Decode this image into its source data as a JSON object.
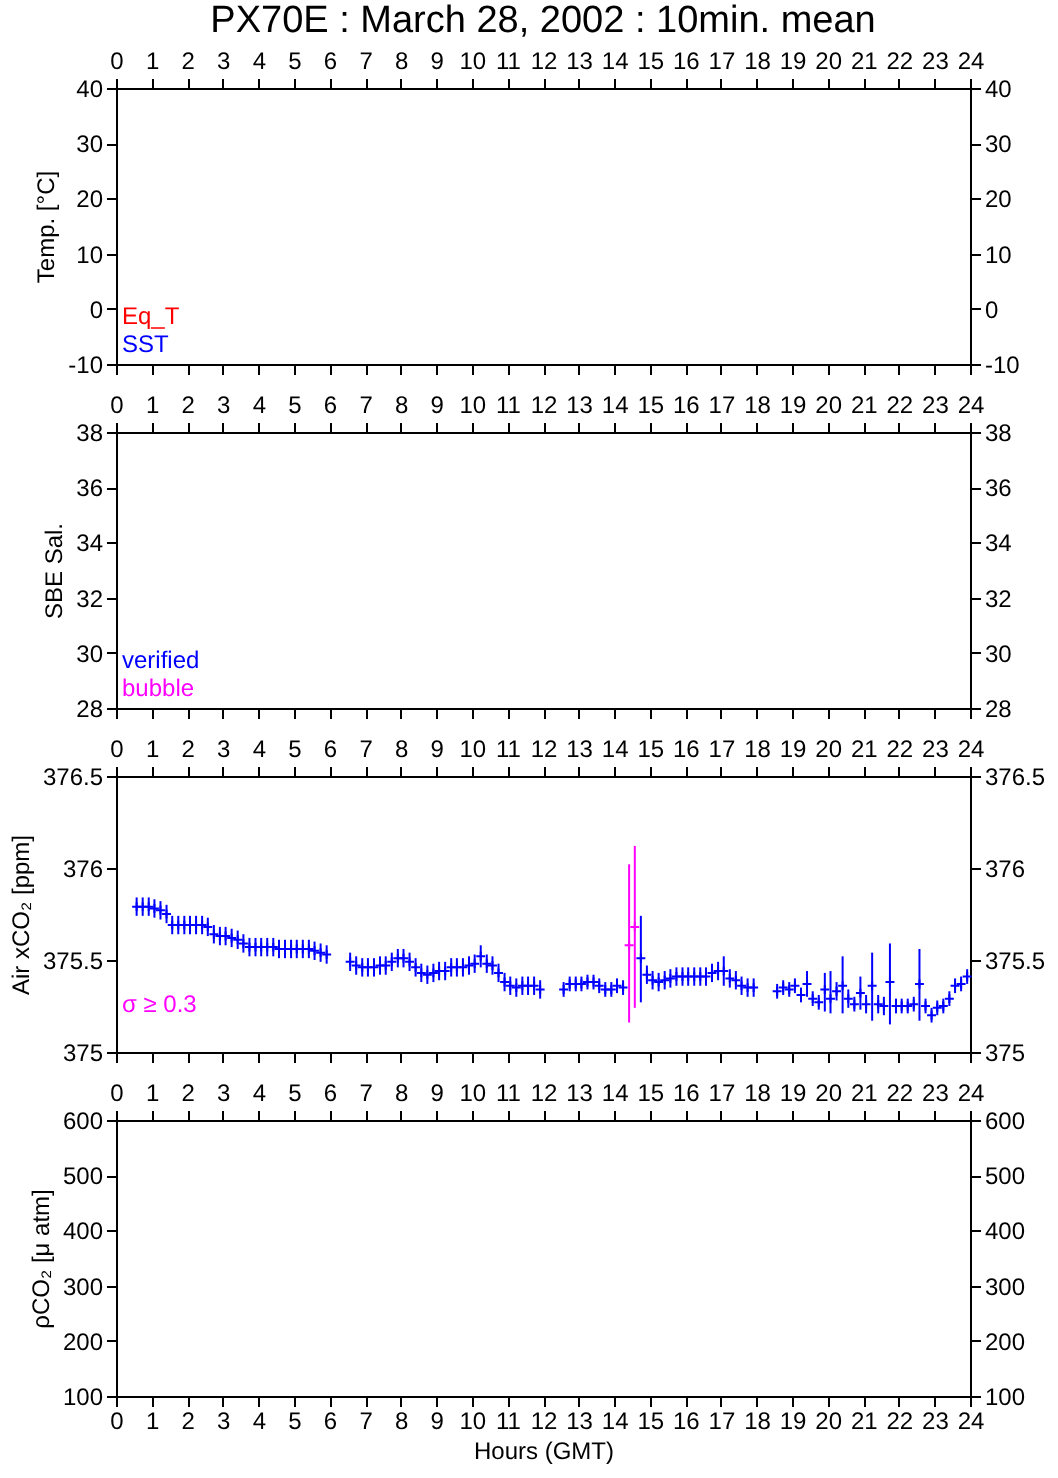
{
  "chart_data": [
    {
      "type": "scatter",
      "title": "PX70E : March 28, 2002 : 10min. mean",
      "ylabel": "Temp. [°C]",
      "x2lim": [
        0,
        24
      ],
      "x2ticks": [
        0,
        1,
        2,
        3,
        4,
        5,
        6,
        7,
        8,
        9,
        10,
        11,
        12,
        13,
        14,
        15,
        16,
        17,
        18,
        19,
        20,
        21,
        22,
        23,
        24
      ],
      "ylim": [
        -10,
        40
      ],
      "yticks": [
        -10,
        0,
        10,
        20,
        30,
        40
      ],
      "y2lim": [
        -10,
        40
      ],
      "y2ticks": [
        -10,
        0,
        10,
        20,
        30,
        40
      ],
      "series": [
        {
          "name": "Eq_T",
          "color": "#ff0000"
        },
        {
          "name": "SST",
          "color": "#0000ff"
        }
      ]
    },
    {
      "type": "scatter",
      "ylabel": "SBE Sal.",
      "x2lim": [
        0,
        24
      ],
      "x2ticks": [
        0,
        1,
        2,
        3,
        4,
        5,
        6,
        7,
        8,
        9,
        10,
        11,
        12,
        13,
        14,
        15,
        16,
        17,
        18,
        19,
        20,
        21,
        22,
        23,
        24
      ],
      "ylim": [
        28,
        38
      ],
      "yticks": [
        28,
        30,
        32,
        34,
        36,
        38
      ],
      "y2lim": [
        28,
        38
      ],
      "y2ticks": [
        28,
        30,
        32,
        34,
        36,
        38
      ],
      "series": [
        {
          "name": "verified",
          "color": "#0000ff"
        },
        {
          "name": "bubble",
          "color": "#ff00ff"
        }
      ]
    },
    {
      "type": "scatter",
      "ylabel": "Air xCO₂ [ppm]",
      "tick_labels": "y",
      "xlim": [
        0,
        24
      ],
      "xticks": [
        0,
        1,
        2,
        3,
        4,
        5,
        6,
        7,
        8,
        9,
        10,
        11,
        12,
        13,
        14,
        15,
        16,
        17,
        18,
        19,
        20,
        21,
        22,
        23,
        24
      ],
      "x2lim": [
        0,
        24
      ],
      "x2ticks": [
        0,
        1,
        2,
        3,
        4,
        5,
        6,
        7,
        8,
        9,
        10,
        11,
        12,
        13,
        14,
        15,
        16,
        17,
        18,
        19,
        20,
        21,
        22,
        23,
        24
      ],
      "ylim": [
        375,
        376.5
      ],
      "yticks": [
        375,
        375.5,
        376,
        376.5
      ],
      "y2lim": [
        375,
        376.5
      ],
      "y2ticks": [
        375,
        375.5,
        376,
        376.5
      ],
      "marker": "cross",
      "series": [
        {
          "color": "#0000ff",
          "x": [
            0.58,
            0.75,
            0.92,
            1.08,
            1.25,
            1.42,
            1.58,
            1.75,
            1.92,
            2.08,
            2.25,
            2.42,
            2.58,
            2.75,
            2.92,
            3.08,
            3.25,
            3.42,
            3.58,
            3.75,
            3.92,
            4.08,
            4.25,
            4.42,
            4.58,
            4.75,
            4.92,
            5.08,
            5.25,
            5.42,
            5.58,
            5.75,
            5.92,
            6.58,
            6.75,
            6.92,
            7.08,
            7.25,
            7.42,
            7.58,
            7.75,
            7.92,
            8.08,
            8.25,
            8.42,
            8.58,
            8.75,
            8.92,
            9.08,
            9.25,
            9.42,
            9.58,
            9.75,
            9.92,
            10.08,
            10.25,
            10.42,
            10.58,
            10.75,
            10.92,
            11.08,
            11.25,
            11.42,
            11.58,
            11.75,
            11.92,
            12.58,
            12.75,
            12.92,
            13.08,
            13.25,
            13.42,
            13.58,
            13.75,
            13.92,
            14.08,
            14.25,
            14.75,
            14.92,
            15.08,
            15.25,
            15.42,
            15.58,
            15.75,
            15.92,
            16.08,
            16.25,
            16.42,
            16.58,
            16.75,
            16.92,
            17.08,
            17.25,
            17.42,
            17.58,
            17.75,
            17.92,
            18.58,
            18.75,
            18.92,
            19.08,
            19.25,
            19.42,
            19.58,
            19.75,
            19.92,
            20.08,
            20.25,
            20.42,
            20.58,
            20.75,
            20.92,
            21.08,
            21.25,
            21.42,
            21.58,
            21.75,
            21.92,
            22.08,
            22.25,
            22.42,
            22.58,
            22.75,
            22.92,
            23.08,
            23.25,
            23.42,
            23.58,
            23.75,
            23.92
          ],
          "values": [
            375.79,
            375.79,
            375.79,
            375.78,
            375.77,
            375.75,
            375.69,
            375.69,
            375.69,
            375.69,
            375.69,
            375.69,
            375.68,
            375.64,
            375.63,
            375.63,
            375.62,
            375.61,
            375.59,
            375.57,
            375.57,
            375.57,
            375.57,
            375.57,
            375.56,
            375.56,
            375.56,
            375.56,
            375.56,
            375.56,
            375.55,
            375.54,
            375.53,
            375.49,
            375.47,
            375.46,
            375.46,
            375.46,
            375.47,
            375.47,
            375.49,
            375.51,
            375.51,
            375.49,
            375.46,
            375.43,
            375.42,
            375.43,
            375.44,
            375.44,
            375.46,
            375.46,
            375.46,
            375.47,
            375.48,
            375.52,
            375.48,
            375.47,
            375.43,
            375.38,
            375.36,
            375.35,
            375.36,
            375.36,
            375.36,
            375.34,
            375.34,
            375.37,
            375.37,
            375.37,
            375.38,
            375.38,
            375.36,
            375.34,
            375.34,
            375.36,
            375.35,
            375.51,
            375.42,
            375.39,
            375.38,
            375.39,
            375.4,
            375.41,
            375.41,
            375.41,
            375.41,
            375.41,
            375.41,
            375.43,
            375.44,
            375.44,
            375.4,
            375.39,
            375.36,
            375.35,
            375.35,
            375.33,
            375.35,
            375.34,
            375.36,
            375.31,
            375.37,
            375.29,
            375.27,
            375.34,
            375.29,
            375.33,
            375.36,
            375.29,
            375.26,
            375.32,
            375.26,
            375.36,
            375.26,
            375.25,
            375.38,
            375.25,
            375.25,
            375.25,
            375.26,
            375.37,
            375.25,
            375.2,
            375.24,
            375.25,
            375.29,
            375.36,
            375.37,
            375.41
          ],
          "errors": [
            0.05,
            0.05,
            0.05,
            0.05,
            0.05,
            0.05,
            0.05,
            0.05,
            0.05,
            0.05,
            0.05,
            0.05,
            0.05,
            0.05,
            0.05,
            0.05,
            0.05,
            0.05,
            0.05,
            0.05,
            0.05,
            0.05,
            0.05,
            0.05,
            0.05,
            0.05,
            0.05,
            0.05,
            0.05,
            0.05,
            0.05,
            0.05,
            0.05,
            0.05,
            0.05,
            0.05,
            0.05,
            0.05,
            0.05,
            0.05,
            0.05,
            0.05,
            0.05,
            0.05,
            0.05,
            0.05,
            0.05,
            0.05,
            0.05,
            0.05,
            0.05,
            0.05,
            0.05,
            0.05,
            0.05,
            0.06,
            0.05,
            0.05,
            0.05,
            0.05,
            0.05,
            0.05,
            0.05,
            0.05,
            0.05,
            0.05,
            0.04,
            0.04,
            0.04,
            0.04,
            0.04,
            0.04,
            0.04,
            0.04,
            0.04,
            0.04,
            0.04,
            [
              375.27,
              375.74
            ],
            0.05,
            0.05,
            0.05,
            0.05,
            0.05,
            0.05,
            0.05,
            0.05,
            0.05,
            0.05,
            0.05,
            0.05,
            0.05,
            0.08,
            0.05,
            0.05,
            0.05,
            0.05,
            0.05,
            0.04,
            0.04,
            0.04,
            0.04,
            0.04,
            0.07,
            0.04,
            0.04,
            [
              375.22,
              375.43
            ],
            [
              375.21,
              375.44
            ],
            0.05,
            [
              375.21,
              375.52
            ],
            0.05,
            0.04,
            [
              375.23,
              375.41
            ],
            0.05,
            [
              375.17,
              375.54
            ],
            0.05,
            0.05,
            [
              375.15,
              375.59
            ],
            0.04,
            0.04,
            0.04,
            0.04,
            [
              375.17,
              375.56
            ],
            0.04,
            0.04,
            0.04,
            0.04,
            0.04,
            0.04,
            0.04,
            0.04
          ]
        },
        {
          "name": "σ ≥ 0.3",
          "color": "#ff00ff",
          "x": [
            14.42,
            14.58
          ],
          "values": [
            375.58,
            375.68
          ],
          "errors": [
            [
              375.16,
              376.02
            ],
            [
              375.24,
              376.12
            ]
          ]
        }
      ]
    },
    {
      "type": "scatter",
      "ylabel": "ρCO₂ [μ atm]",
      "xlabel": "Hours (GMT)",
      "xlim": [
        0,
        24
      ],
      "xticks": [
        0,
        1,
        2,
        3,
        4,
        5,
        6,
        7,
        8,
        9,
        10,
        11,
        12,
        13,
        14,
        15,
        16,
        17,
        18,
        19,
        20,
        21,
        22,
        23,
        24
      ],
      "x2lim": [
        0,
        24
      ],
      "x2ticks": [
        0,
        1,
        2,
        3,
        4,
        5,
        6,
        7,
        8,
        9,
        10,
        11,
        12,
        13,
        14,
        15,
        16,
        17,
        18,
        19,
        20,
        21,
        22,
        23,
        24
      ],
      "ylim": [
        100,
        600
      ],
      "yticks": [
        100,
        200,
        300,
        400,
        500,
        600
      ],
      "y2lim": [
        100,
        600
      ],
      "y2ticks": [
        100,
        200,
        300,
        400,
        500,
        600
      ]
    }
  ]
}
